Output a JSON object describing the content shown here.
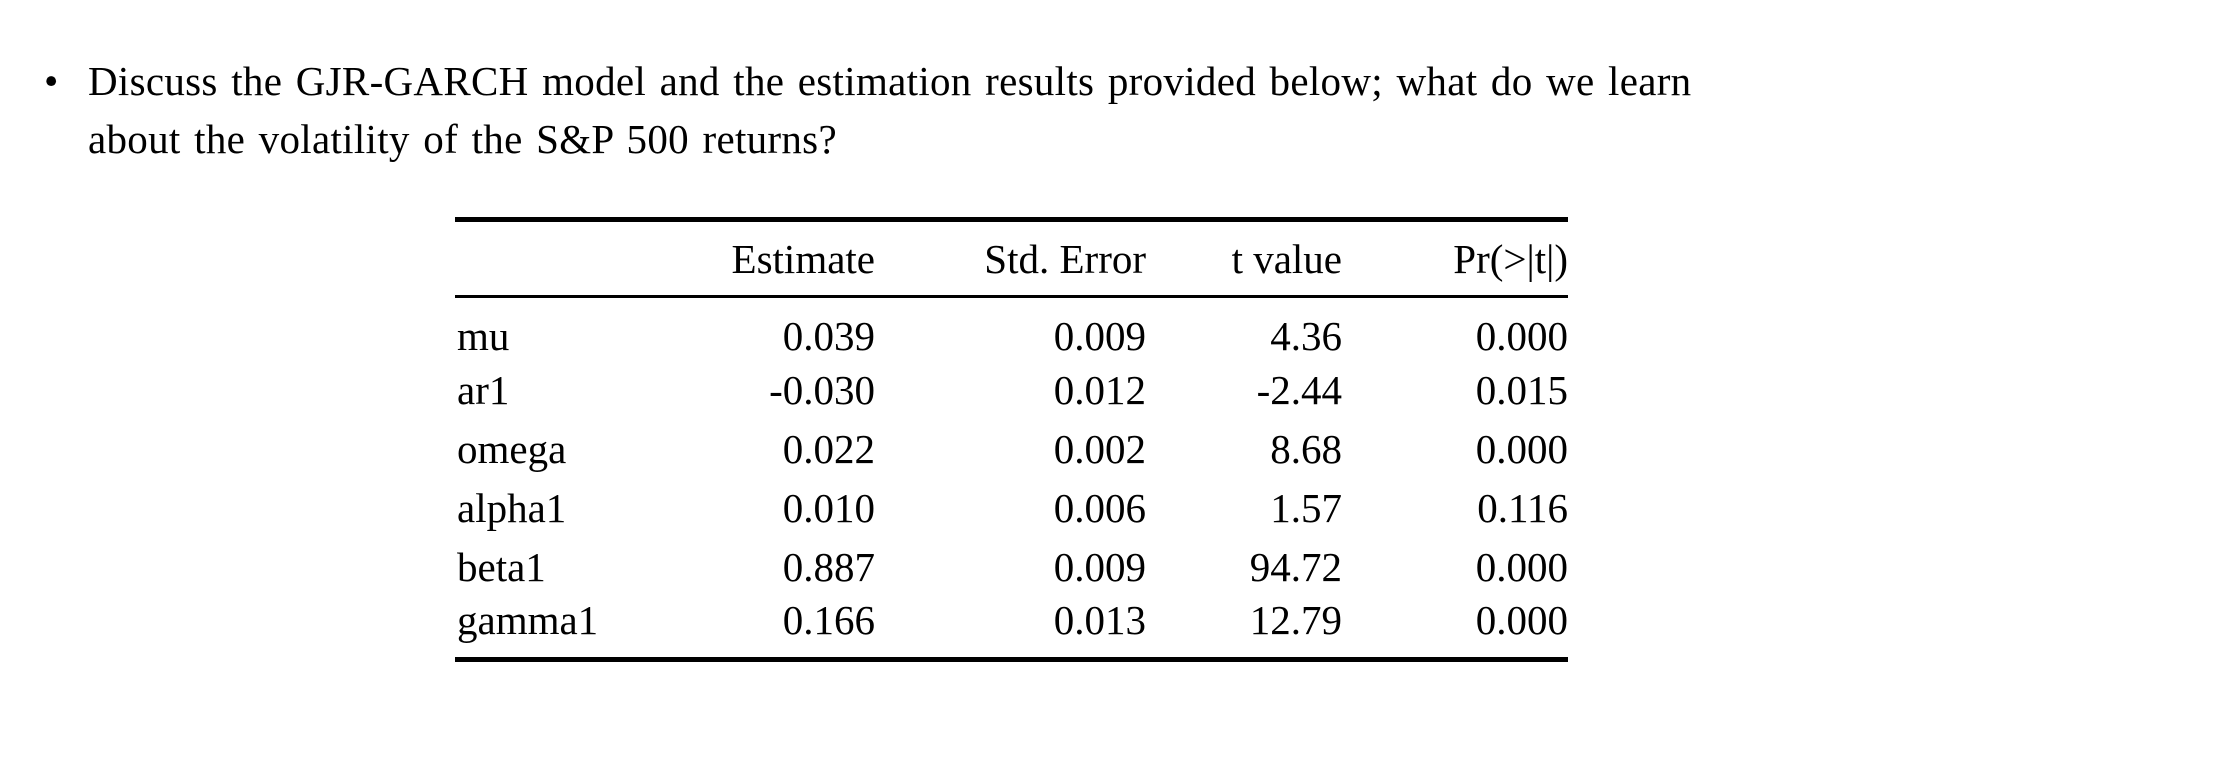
{
  "page": {
    "background_color": "#ffffff",
    "text_color": "#000000"
  },
  "bullet_item": {
    "marker": "•",
    "line1": "Discuss the GJR-GARCH model and the estimation results provided below; what do we learn",
    "line2": "about the volatility of the S&P 500 returns?"
  },
  "table": {
    "headers": {
      "estimate": "Estimate",
      "std_error": "Std. Error",
      "t_value": "t value",
      "p_value": "Pr(>|t|)"
    },
    "rows": [
      {
        "term": "mu",
        "estimate": "0.039",
        "std_error": "0.009",
        "t_value": "4.36",
        "p_value": "0.000"
      },
      {
        "term": "ar1",
        "estimate": "-0.030",
        "std_error": "0.012",
        "t_value": "-2.44",
        "p_value": "0.015"
      },
      {
        "term": "omega",
        "estimate": "0.022",
        "std_error": "0.002",
        "t_value": "8.68",
        "p_value": "0.000"
      },
      {
        "term": "alpha1",
        "estimate": "0.010",
        "std_error": "0.006",
        "t_value": "1.57",
        "p_value": "0.116"
      },
      {
        "term": "beta1",
        "estimate": "0.887",
        "std_error": "0.009",
        "t_value": "94.72",
        "p_value": "0.000"
      },
      {
        "term": "gamma1",
        "estimate": "0.166",
        "std_error": "0.013",
        "t_value": "12.79",
        "p_value": "0.000"
      }
    ]
  }
}
